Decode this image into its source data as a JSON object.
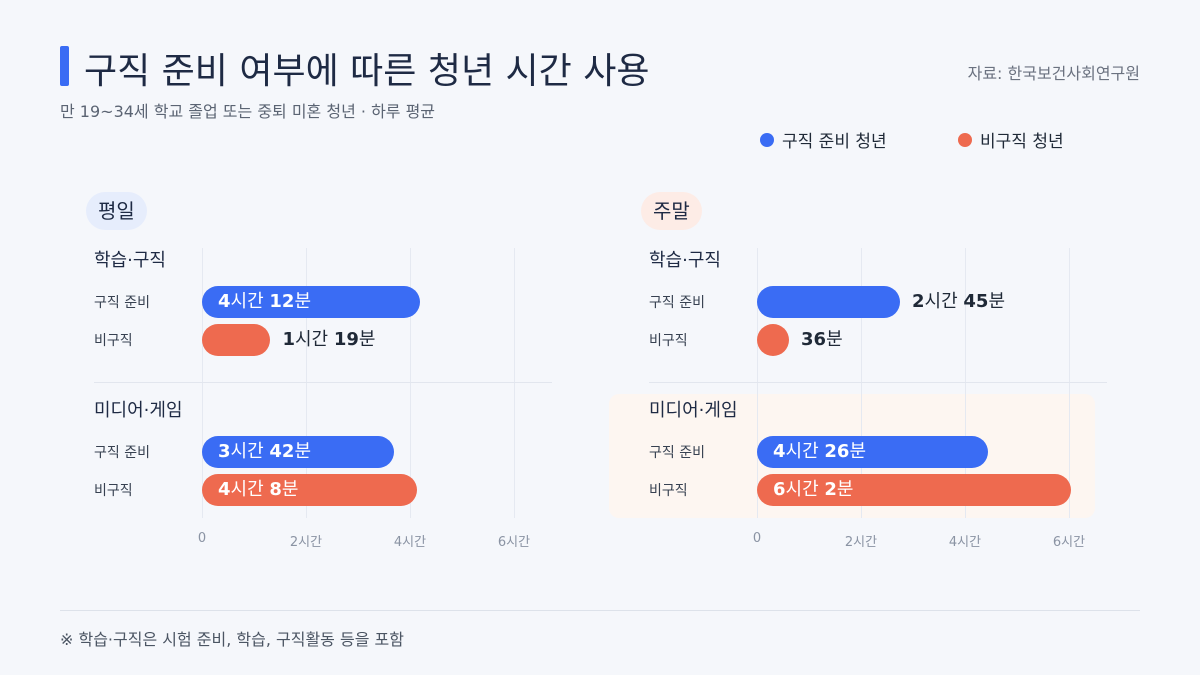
{
  "header": {
    "title": "구직 준비 여부에 따른 청년 시간 사용",
    "subtitle": "만 19~34세 학교 졸업 또는 중퇴 미혼 청년 · 하루 평균",
    "source": "자료: 한국보건사회연구원"
  },
  "legend": [
    {
      "label": "구직 준비 청년",
      "color": "#3a6cf4"
    },
    {
      "label": "비구직 청년",
      "color": "#ee6a4f"
    }
  ],
  "footnote": "※ 학습·구직은 시험 준비, 학습, 구직활동 등을 포함",
  "chart_data": [
    {
      "type": "bar",
      "orientation": "horizontal",
      "title": "평일",
      "unit": "분",
      "xlim": [
        0,
        6
      ],
      "x_ticks": [
        "0",
        "2시간",
        "4시간",
        "6시간"
      ],
      "groups": [
        {
          "name": "학습·구직",
          "rows": [
            {
              "label": "구직 준비",
              "series": "구직 준비 청년",
              "minutes": 252,
              "h": "4",
              "m": "12",
              "text": "4시간 12분"
            },
            {
              "label": "비구직",
              "series": "비구직 청년",
              "minutes": 79,
              "h": "1",
              "m": "19",
              "text": "1시간 19분"
            }
          ]
        },
        {
          "name": "미디어·게임",
          "rows": [
            {
              "label": "구직 준비",
              "series": "구직 준비 청년",
              "minutes": 222,
              "h": "3",
              "m": "42",
              "text": "3시간 42분"
            },
            {
              "label": "비구직",
              "series": "비구직 청년",
              "minutes": 248,
              "h": "4",
              "m": "8",
              "text": "4시간 8분"
            }
          ]
        }
      ]
    },
    {
      "type": "bar",
      "orientation": "horizontal",
      "title": "주말",
      "unit": "분",
      "xlim": [
        0,
        6
      ],
      "x_ticks": [
        "0",
        "2시간",
        "4시간",
        "6시간"
      ],
      "highlight_group": "미디어·게임",
      "groups": [
        {
          "name": "학습·구직",
          "rows": [
            {
              "label": "구직 준비",
              "series": "구직 준비 청년",
              "minutes": 165,
              "h": "2",
              "m": "45",
              "text": "2시간 45분"
            },
            {
              "label": "비구직",
              "series": "비구직 청년",
              "minutes": 36,
              "h": "",
              "m": "36",
              "text": "36분"
            }
          ]
        },
        {
          "name": "미디어·게임",
          "rows": [
            {
              "label": "구직 준비",
              "series": "구직 준비 청년",
              "minutes": 266,
              "h": "4",
              "m": "26",
              "text": "4시간 26분"
            },
            {
              "label": "비구직",
              "series": "비구직 청년",
              "minutes": 362,
              "h": "6",
              "m": "2",
              "text": "6시간 2분"
            }
          ]
        }
      ]
    }
  ]
}
